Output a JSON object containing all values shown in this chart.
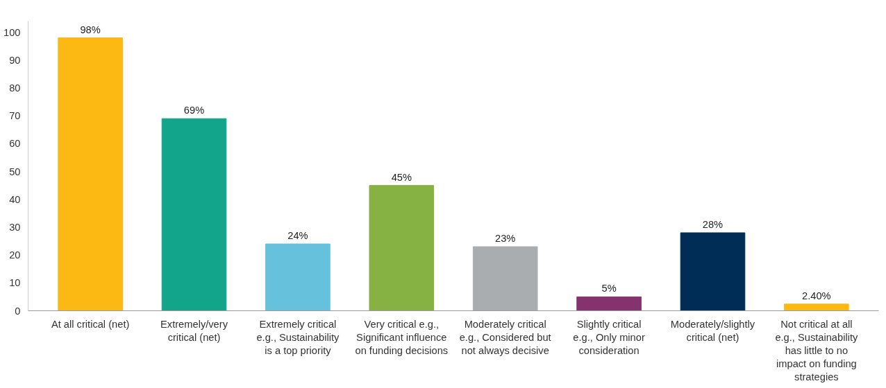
{
  "chart_data": {
    "type": "bar",
    "categories": [
      "At all critical (net)",
      "Extremely/very critical (net)",
      "Extremely critical e.g., Sustainability is a top priority",
      "Very critical e.g., Significant influence on funding decisions",
      "Moderately critical e.g., Considered but not always decisive",
      "Slightly critical e.g., Only minor consideration",
      "Moderately/slightly critical (net)",
      "Not critical at all e.g., Sustainability has little to no impact on funding strategies"
    ],
    "values": [
      98,
      69,
      24,
      45,
      23,
      5,
      28,
      2.4
    ],
    "colors": [
      "#fdb913",
      "#13a58c",
      "#65c1dc",
      "#86b143",
      "#a9adb0",
      "#84336f",
      "#002d55",
      "#fdb913"
    ],
    "value_labels": [
      "98%",
      "69%",
      "24%",
      "45%",
      "23%",
      "5%",
      "28%",
      "2.40%"
    ],
    "ylim": [
      0,
      104
    ],
    "yticks": [
      0,
      10,
      20,
      30,
      40,
      50,
      60,
      70,
      80,
      90,
      100
    ],
    "grid": false
  }
}
